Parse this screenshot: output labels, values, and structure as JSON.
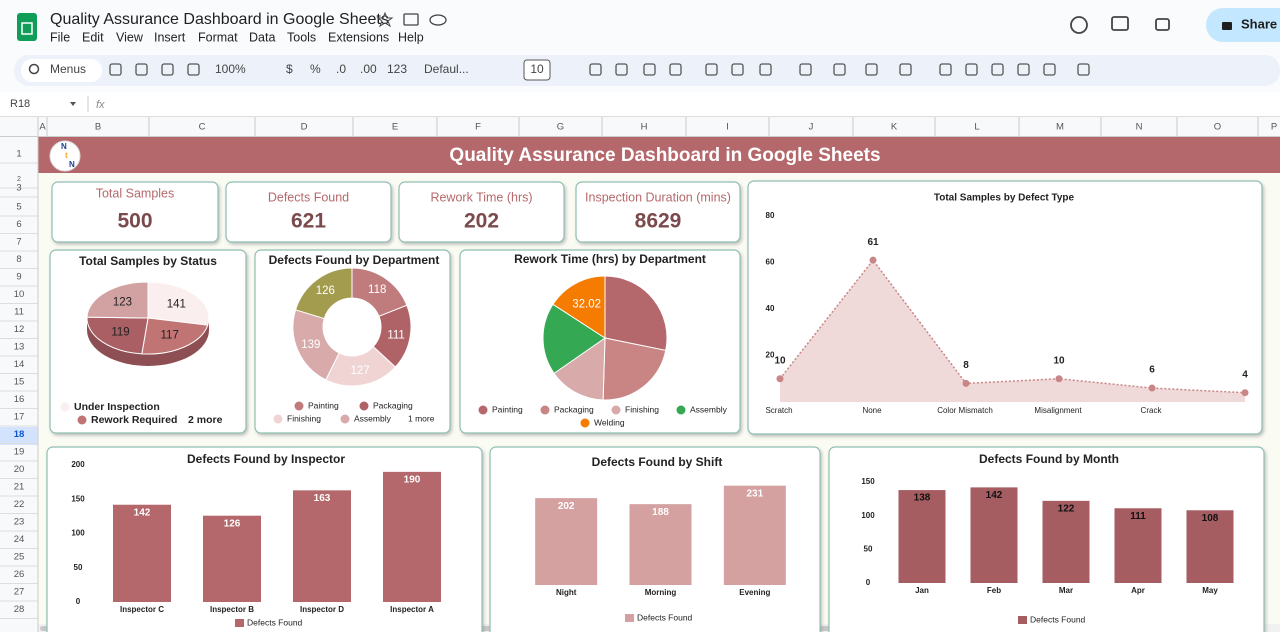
{
  "app": {
    "doc_title": "Quality Assurance Dashboard in Google Sheets",
    "menu": [
      "File",
      "Edit",
      "View",
      "Insert",
      "Format",
      "Data",
      "Tools",
      "Extensions",
      "Help"
    ],
    "share": "Share",
    "toolbar": {
      "search": "Menus",
      "zoom": "100%",
      "currency": "$",
      "percent": "%",
      "decimal_decrease": ".0",
      "decimal_increase": ".00",
      "number_format": "123",
      "font": "Defaul...",
      "font_size": "10"
    },
    "name_box": "R18",
    "fx": "fx",
    "columns": [
      "A",
      "B",
      "C",
      "D",
      "E",
      "F",
      "G",
      "H",
      "I",
      "J",
      "K",
      "L",
      "M",
      "N",
      "O",
      "P"
    ],
    "rows": [
      "1",
      "2",
      "3",
      "5",
      "6",
      "7",
      "8",
      "9",
      "10",
      "11",
      "12",
      "13",
      "14",
      "15",
      "16",
      "17",
      "18",
      "19",
      "20",
      "21",
      "22",
      "23",
      "24",
      "25",
      "26",
      "27",
      "28"
    ]
  },
  "dashboard": {
    "title": "Quality Assurance Dashboard in Google Sheets",
    "logo": [
      "N",
      "t",
      "N"
    ],
    "kpis": [
      {
        "label": "Total Samples",
        "value": 500
      },
      {
        "label": "Defects Found",
        "value": 621
      },
      {
        "label": "Rework Time (hrs)",
        "value": 202
      },
      {
        "label": "Inspection Duration (mins)",
        "value": 8629
      }
    ]
  },
  "chart_data": [
    {
      "type": "pie",
      "title": "Total Samples by Status",
      "tilted": true,
      "categories": [
        "Under Inspection",
        "Rework Required",
        null,
        null
      ],
      "values": [
        141,
        117,
        119,
        123
      ],
      "colors": [
        "#fbeeee",
        "#c07474",
        "#a95f63",
        "#d2a2a2"
      ],
      "legend_more": "2 more"
    },
    {
      "type": "pie",
      "title": "Defects Found by Department",
      "donut": true,
      "categories": [
        "Painting",
        "Packaging",
        "Finishing",
        "Assembly",
        null
      ],
      "values": [
        118,
        111,
        127,
        139,
        126
      ],
      "colors": [
        "#c07c7c",
        "#b06367",
        "#f0d3d3",
        "#d8aaaa",
        "#a39c4e"
      ],
      "legend_more": "1 more"
    },
    {
      "type": "pie",
      "title": "Rework Time (hrs) by Department",
      "categories": [
        "Painting",
        "Packaging",
        "Finishing",
        "Assembly",
        "Welding"
      ],
      "values": [
        57,
        45,
        30,
        38,
        32.02
      ],
      "value_labels": [
        null,
        null,
        null,
        null,
        "32.02"
      ],
      "colors": [
        "#b5686b",
        "#c98484",
        "#d8aaaa",
        "#34a853",
        "#f57c00"
      ]
    },
    {
      "type": "area",
      "title": "Total Samples by Defect Type",
      "categories": [
        "Scratch",
        "None",
        "Color Mismatch",
        "Misalignment",
        "Crack",
        null
      ],
      "values": [
        10,
        61,
        8,
        10,
        6,
        4
      ],
      "color": "#c98686",
      "ylim": [
        0,
        80
      ],
      "yticks": [
        20,
        40,
        60,
        80
      ]
    },
    {
      "type": "bar",
      "title": "Defects Found by Inspector",
      "categories": [
        "Inspector C",
        "Inspector B",
        "Inspector D",
        "Inspector A"
      ],
      "series": [
        {
          "name": "Defects Found",
          "color": "#b5686b",
          "values": [
            142,
            126,
            163,
            190
          ]
        }
      ],
      "ylim": [
        0,
        200
      ],
      "yticks": [
        0,
        50,
        100,
        150,
        200
      ],
      "value_label_color": "#ffffff"
    },
    {
      "type": "bar",
      "title": "Defects Found by Shift",
      "categories": [
        "Night",
        "Morning",
        "Evening"
      ],
      "series": [
        {
          "name": "Defects Found",
          "color": "#d4a0a0",
          "values": [
            202,
            188,
            231
          ]
        }
      ],
      "ylim": [
        0,
        250
      ],
      "value_label_color": "#ffffff"
    },
    {
      "type": "bar",
      "title": "Defects Found by Month",
      "categories": [
        "Jan",
        "Feb",
        "Mar",
        "Apr",
        "May"
      ],
      "series": [
        {
          "name": "Defects Found",
          "color": "#a55d62",
          "values": [
            138,
            142,
            122,
            111,
            108
          ]
        }
      ],
      "ylim": [
        0,
        150
      ],
      "yticks": [
        0,
        50,
        100,
        150
      ],
      "value_label_color": "#111111"
    }
  ]
}
